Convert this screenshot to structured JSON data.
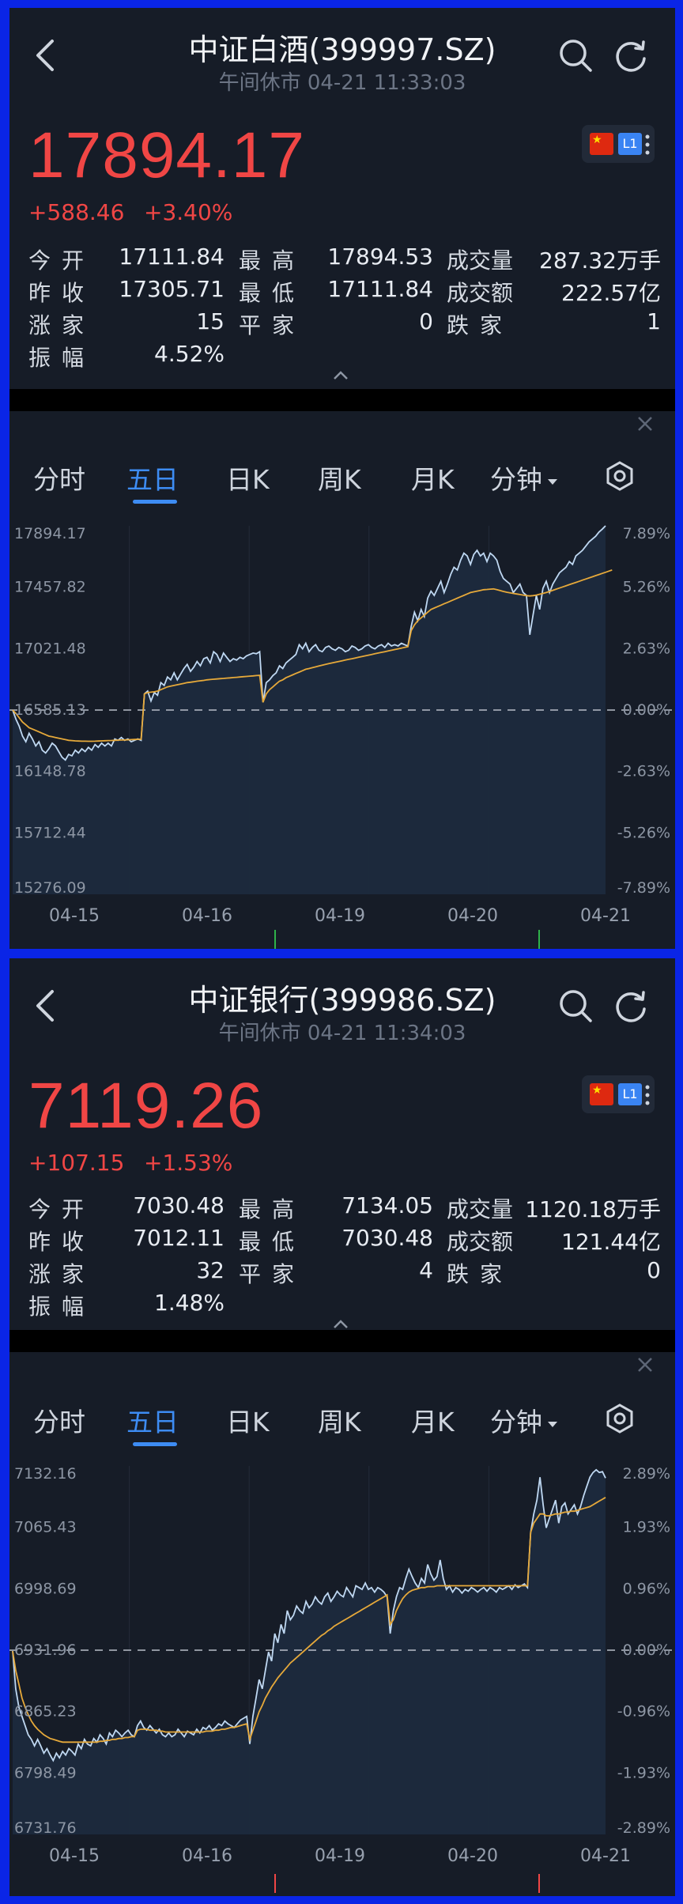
{
  "panels": [
    {
      "header": {
        "title": "中证白酒(399997.SZ)",
        "subtitle": "午间休市 04-21 11:33:03"
      },
      "price": "17894.17",
      "change": "+588.46",
      "change_pct": "+3.40%",
      "badge": {
        "l1": "L1"
      },
      "stats": {
        "open_label": "今开",
        "open": "17111.84",
        "high_label": "最高",
        "high": "17894.53",
        "volume_label": "成交量",
        "volume": "287.32万手",
        "prev_label": "昨收",
        "prev": "17305.71",
        "low_label": "最低",
        "low": "17111.84",
        "amount_label": "成交额",
        "amount": "222.57亿",
        "up_label": "涨家",
        "up": "15",
        "flat_label": "平家",
        "flat": "0",
        "down_label": "跌家",
        "down": "1",
        "amp_label": "振幅",
        "amp": "4.52%"
      },
      "tabs": [
        "分时",
        "五日",
        "日K",
        "周K",
        "月K",
        "分钟"
      ],
      "active_tab": "五日",
      "chart_data": {
        "type": "line",
        "x_labels": [
          "04-15",
          "04-16",
          "04-19",
          "04-20",
          "04-21"
        ],
        "y_left_labels": [
          "17894.17",
          "17457.82",
          "17021.48",
          "16585.13",
          "16148.78",
          "15712.44",
          "15276.09"
        ],
        "y_right_labels": [
          "7.89%",
          "5.26%",
          "2.63%",
          "0.00%",
          "-2.63%",
          "-5.26%",
          "-7.89%"
        ],
        "ylim": [
          15276.09,
          17894.17
        ],
        "baseline": 16585.13,
        "series": [
          {
            "values": [
              16585,
              16520,
              16470,
              16400,
              16360,
              16420,
              16380,
              16330,
              16360,
              16300,
              16280,
              16310,
              16350,
              16330,
              16290,
              16250,
              16230,
              16270,
              16260,
              16300,
              16280,
              16310,
              16290,
              16320,
              16300,
              16340,
              16320,
              16350,
              16330,
              16350,
              16330,
              16380,
              16370,
              16390,
              16370,
              16380,
              16360,
              16370,
              16380,
              16370,
              16700,
              16720,
              16650,
              16710,
              16690,
              16780,
              16760,
              16820,
              16800,
              16850,
              16800,
              16840,
              16880,
              16910,
              16860,
              16890,
              16930,
              16900,
              16950,
              16960,
              16920,
              17000,
              16980,
              16930,
              16990,
              16960,
              16930,
              16950,
              16940,
              16960,
              16950,
              16970,
              16980,
              16990,
              16985,
              17000,
              16640,
              16780,
              16800,
              16830,
              16850,
              16900,
              16880,
              16920,
              16940,
              16960,
              16980,
              17050,
              17020,
              17060,
              17000,
              17030,
              17050,
              17010,
              17000,
              17030,
              17040,
              17020,
              17010,
              17030,
              17020,
              17000,
              17010,
              17040,
              17030,
              17010,
              17020,
              17040,
              17050,
              17030,
              17020,
              17040,
              17050,
              17030,
              17060,
              17040,
              17050,
              17040,
              17060,
              17050,
              17040,
              17180,
              17280,
              17220,
              17300,
              17250,
              17380,
              17430,
              17400,
              17450,
              17500,
              17420,
              17480,
              17550,
              17600,
              17580,
              17650,
              17700,
              17680,
              17620,
              17690,
              17720,
              17680,
              17700,
              17640,
              17700,
              17680,
              17650,
              17570,
              17520,
              17500,
              17480,
              17420,
              17450,
              17480,
              17420,
              17400,
              17120,
              17260,
              17400,
              17300,
              17450,
              17500,
              17420,
              17480,
              17520,
              17560,
              17580,
              17600,
              17640,
              17620,
              17680,
              17700,
              17720,
              17750,
              17780,
              17800,
              17820,
              17850,
              17870,
              17894
            ]
          },
          {
            "values": [
              16585,
              16560,
              16530,
              16500,
              16480,
              16460,
              16450,
              16440,
              16430,
              16420,
              16410,
              16400,
              16395,
              16390,
              16385,
              16380,
              16375,
              16370,
              16368,
              16366,
              16365,
              16364,
              16364,
              16363,
              16363,
              16364,
              16365,
              16366,
              16367,
              16368,
              16369,
              16370,
              16371,
              16372,
              16373,
              16374,
              16375,
              16376,
              16377,
              16378,
              16700,
              16710,
              16712,
              16715,
              16720,
              16730,
              16740,
              16750,
              16755,
              16760,
              16765,
              16770,
              16775,
              16780,
              16783,
              16786,
              16790,
              16793,
              16796,
              16800,
              16802,
              16804,
              16806,
              16808,
              16810,
              16812,
              16814,
              16816,
              16818,
              16820,
              16822,
              16824,
              16826,
              16828,
              16830,
              16832,
              16640,
              16700,
              16730,
              16750,
              16770,
              16790,
              16800,
              16815,
              16825,
              16835,
              16845,
              16855,
              16865,
              16875,
              16880,
              16886,
              16892,
              16898,
              16904,
              16910,
              16915,
              16920,
              16925,
              16930,
              16935,
              16940,
              16945,
              16950,
              16955,
              16960,
              16965,
              16970,
              16975,
              16980,
              16985,
              16990,
              16995,
              17000,
              17005,
              17010,
              17015,
              17020,
              17025,
              17030,
              17035,
              17150,
              17190,
              17220,
              17240,
              17260,
              17280,
              17300,
              17310,
              17320,
              17330,
              17340,
              17350,
              17360,
              17370,
              17380,
              17390,
              17400,
              17410,
              17420,
              17425,
              17430,
              17435,
              17440,
              17442,
              17444,
              17446,
              17440,
              17434,
              17428,
              17422,
              17418,
              17414,
              17410,
              17406,
              17402,
              17398,
              17396,
              17398,
              17402,
              17408,
              17414,
              17420,
              17428,
              17436,
              17444,
              17452,
              17460,
              17468,
              17476,
              17484,
              17492,
              17500,
              17508,
              17516,
              17524,
              17532,
              17540,
              17548,
              17556,
              17564,
              17572,
              17580
            ]
          }
        ]
      }
    },
    {
      "header": {
        "title": "中证银行(399986.SZ)",
        "subtitle": "午间休市 04-21 11:34:03"
      },
      "price": "7119.26",
      "change": "+107.15",
      "change_pct": "+1.53%",
      "badge": {
        "l1": "L1"
      },
      "stats": {
        "open_label": "今开",
        "open": "7030.48",
        "high_label": "最高",
        "high": "7134.05",
        "volume_label": "成交量",
        "volume": "1120.18万手",
        "prev_label": "昨收",
        "prev": "7012.11",
        "low_label": "最低",
        "low": "7030.48",
        "amount_label": "成交额",
        "amount": "121.44亿",
        "up_label": "涨家",
        "up": "32",
        "flat_label": "平家",
        "flat": "4",
        "down_label": "跌家",
        "down": "0",
        "amp_label": "振幅",
        "amp": "1.48%"
      },
      "tabs": [
        "分时",
        "五日",
        "日K",
        "周K",
        "月K",
        "分钟"
      ],
      "active_tab": "五日",
      "chart_data": {
        "type": "line",
        "x_labels": [
          "04-15",
          "04-16",
          "04-19",
          "04-20",
          "04-21"
        ],
        "y_left_labels": [
          "7132.16",
          "7065.43",
          "6998.69",
          "6931.96",
          "6865.23",
          "6798.49",
          "6731.76"
        ],
        "y_right_labels": [
          "2.89%",
          "1.93%",
          "0.96%",
          "0.00%",
          "-0.96%",
          "-1.93%",
          "-2.89%"
        ],
        "ylim": [
          6731.76,
          7132.16
        ],
        "baseline": 6931.96,
        "series": [
          {
            "values": [
              6931,
              6890,
              6870,
              6860,
              6850,
              6840,
              6835,
              6828,
              6835,
              6828,
              6820,
              6825,
              6818,
              6812,
              6820,
              6815,
              6822,
              6818,
              6825,
              6822,
              6818,
              6830,
              6825,
              6835,
              6830,
              6828,
              6836,
              6832,
              6840,
              6836,
              6830,
              6842,
              6838,
              6845,
              6842,
              6838,
              6842,
              6845,
              6840,
              6838,
              6850,
              6855,
              6848,
              6845,
              6850,
              6846,
              6842,
              6846,
              6840,
              6838,
              6842,
              6838,
              6840,
              6846,
              6842,
              6838,
              6844,
              6842,
              6840,
              6846,
              6842,
              6848,
              6846,
              6850,
              6845,
              6848,
              6852,
              6850,
              6855,
              6852,
              6850,
              6848,
              6852,
              6856,
              6858,
              6860,
              6830,
              6860,
              6880,
              6900,
              6890,
              6910,
              6930,
              6920,
              6950,
              6940,
              6960,
              6950,
              6975,
              6965,
              6970,
              6980,
              6975,
              6972,
              6985,
              6978,
              6982,
              6990,
              6985,
              6982,
              6990,
              6994,
              6985,
              6990,
              6996,
              6992,
              6990,
              7000,
              6995,
              6990,
              7002,
              7000,
              6998,
              7005,
              6998,
              7000,
              6995,
              7000,
              6998,
              6995,
              6990,
              6950,
              6975,
              6990,
              7000,
              6998,
              7010,
              7020,
              7012,
              7005,
              7000,
              7010,
              7005,
              7025,
              7015,
              7008,
              7012,
              7030,
              7010,
              6998,
              7002,
              6995,
              7000,
              6998,
              6994,
              6998,
              6996,
              7000,
              6998,
              6995,
              6998,
              7000,
              6996,
              7000,
              6998,
              6995,
              7000,
              6998,
              7000,
              7002,
              6998,
              7003,
              7000,
              7002,
              7004,
              7000,
              7060,
              7080,
              7095,
              7120,
              7090,
              7065,
              7075,
              7085,
              7095,
              7070,
              7088,
              7092,
              7080,
              7085,
              7090,
              7080,
              7088,
              7100,
              7110,
              7120,
              7125,
              7128,
              7125,
              7126,
              7119
            ]
          },
          {
            "values": [
              6931,
              6910,
              6895,
              6880,
              6870,
              6862,
              6855,
              6850,
              6846,
              6843,
              6840,
              6838,
              6836,
              6835,
              6834,
              6833,
              6832,
              6832,
              6832,
              6832,
              6832,
              6832,
              6832,
              6832,
              6832,
              6832,
              6832,
              6832,
              6833,
              6833,
              6834,
              6834,
              6835,
              6835,
              6836,
              6836,
              6837,
              6837,
              6838,
              6838,
              6845,
              6846,
              6846,
              6846,
              6845,
              6845,
              6845,
              6844,
              6844,
              6843,
              6843,
              6843,
              6843,
              6843,
              6843,
              6843,
              6843,
              6843,
              6843,
              6843,
              6843,
              6843,
              6844,
              6844,
              6844,
              6845,
              6845,
              6846,
              6846,
              6847,
              6848,
              6848,
              6849,
              6850,
              6851,
              6852,
              6835,
              6845,
              6855,
              6865,
              6872,
              6880,
              6886,
              6892,
              6897,
              6902,
              6906,
              6910,
              6914,
              6918,
              6921,
              6924,
              6927,
              6930,
              6933,
              6936,
              6939,
              6942,
              6945,
              6948,
              6950,
              6953,
              6955,
              6958,
              6960,
              6962,
              6964,
              6966,
              6968,
              6970,
              6972,
              6974,
              6976,
              6978,
              6980,
              6982,
              6984,
              6986,
              6988,
              6990,
              6992,
              6960,
              6965,
              6975,
              6982,
              6988,
              6992,
              6995,
              6997,
              6998,
              6999,
              7000,
              7000,
              7001,
              7001,
              7001,
              7002,
              7002,
              7002,
              7002,
              7002,
              7002,
              7002,
              7002,
              7002,
              7002,
              7002,
              7002,
              7002,
              7002,
              7002,
              7002,
              7002,
              7002,
              7002,
              7002,
              7002,
              7002,
              7002,
              7002,
              7002,
              7002,
              7002,
              7002,
              7002,
              7002,
              7060,
              7070,
              7075,
              7080,
              7080,
              7078,
              7078,
              7079,
              7080,
              7080,
              7081,
              7082,
              7082,
              7083,
              7083,
              7084,
              7085,
              7086,
              7087,
              7088,
              7090,
              7092,
              7094,
              7096,
              7098
            ]
          }
        ]
      }
    }
  ],
  "colors": {
    "up": "#f04645",
    "accent": "#3d8cf3",
    "price_line": "#bfd8f2",
    "avg_line": "#e6a93a",
    "bg": "#161c27",
    "frame": "#0a25e6"
  }
}
